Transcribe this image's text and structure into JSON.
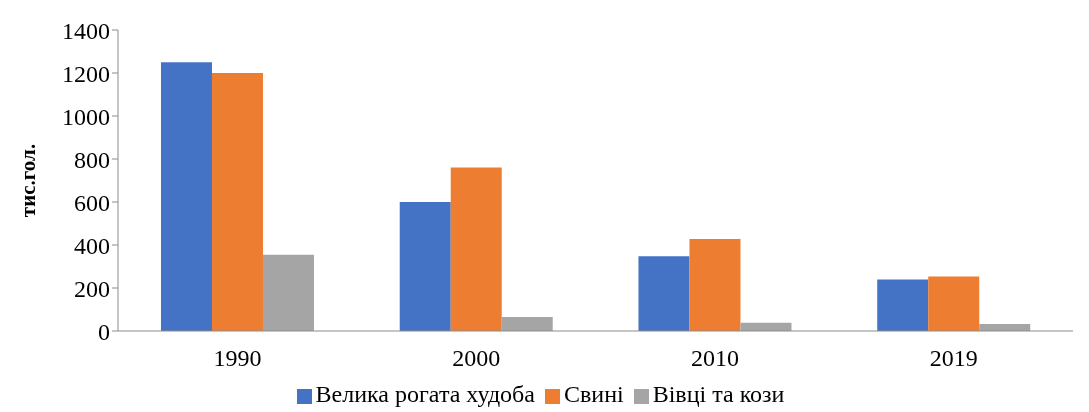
{
  "chart_data": {
    "type": "bar",
    "ylabel": "тис.гол.",
    "categories": [
      "1990",
      "2000",
      "2010",
      "2019"
    ],
    "series": [
      {
        "name": "Велика рогата худоба",
        "color": "#4472c4",
        "values": [
          1250,
          600,
          348,
          240
        ]
      },
      {
        "name": "Свині",
        "color": "#ed7d31",
        "values": [
          1200,
          760,
          428,
          253
        ]
      },
      {
        "name": "Вівці та кози",
        "color": "#a5a5a5",
        "values": [
          355,
          65,
          38,
          32
        ]
      }
    ],
    "ylim": [
      0,
      1400
    ],
    "yticks": [
      0,
      200,
      400,
      600,
      800,
      1000,
      1200,
      1400
    ],
    "grid": false,
    "legend": "bottom"
  }
}
